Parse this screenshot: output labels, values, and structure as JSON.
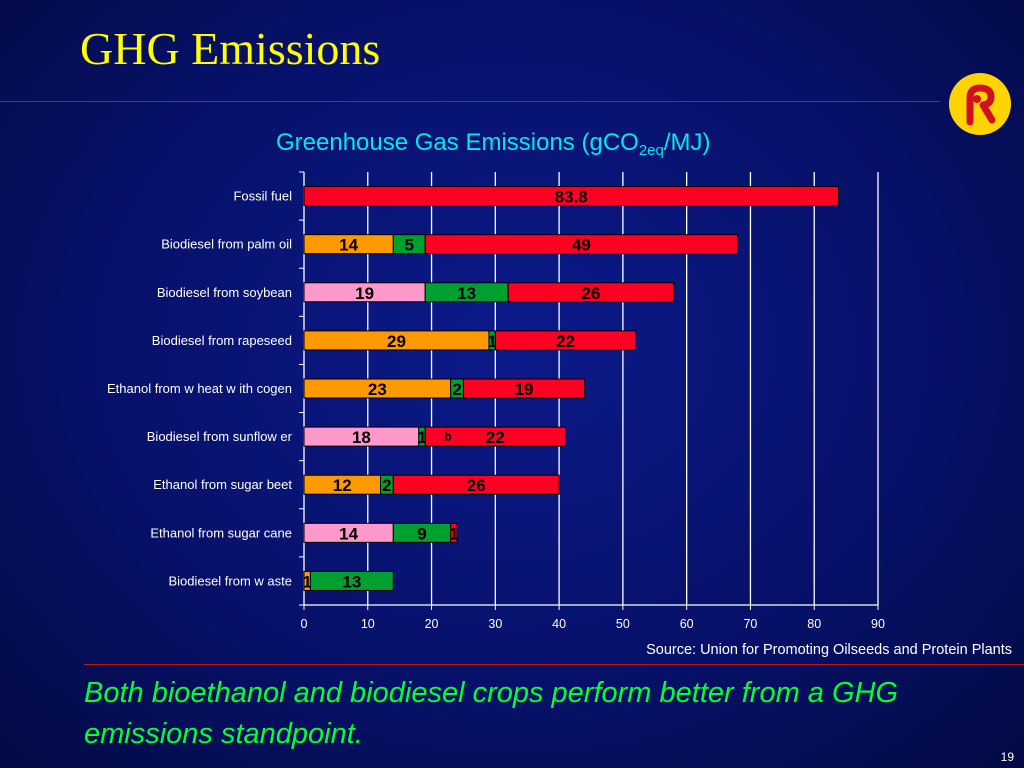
{
  "slide": {
    "title": "GHG Emissions",
    "source": "Source: Union for Promoting Oilseeds and Protein Plants",
    "conclusion": "Both bioethanol and biodiesel crops perform better from a GHG emissions standpoint.",
    "slide_number": "19"
  },
  "colors": {
    "background": "#07116a",
    "title": "#ffff00",
    "rule": "#c81010",
    "chart_title": "#00e8e8",
    "conclusion": "#00ff33",
    "seg_orange": "#ff9900",
    "seg_pink": "#ff99cc",
    "seg_green": "#00a030",
    "seg_red": "#ff0022",
    "logo_bg": "#ffd400",
    "logo_mark": "#d01020"
  },
  "chart_data": {
    "type": "bar",
    "orientation": "horizontal",
    "stacked": true,
    "title": "Greenhouse Gas Emissions (gCO",
    "title_sub": "2eq",
    "title_tail": "/MJ)",
    "xlim": [
      0,
      90
    ],
    "x_ticks": [
      0,
      10,
      20,
      30,
      40,
      50,
      60,
      70,
      80,
      90
    ],
    "grid": true,
    "annotation": "b",
    "rows": [
      {
        "label": "Fossil fuel",
        "segments": [
          {
            "value": 83.8,
            "color": "seg_red",
            "text": "83.8"
          }
        ]
      },
      {
        "label": "Biodiesel from palm oil",
        "segments": [
          {
            "value": 14,
            "color": "seg_orange",
            "text": "14"
          },
          {
            "value": 5,
            "color": "seg_green",
            "text": "5"
          },
          {
            "value": 49,
            "color": "seg_red",
            "text": "49"
          }
        ]
      },
      {
        "label": "Biodiesel from soybean",
        "segments": [
          {
            "value": 19,
            "color": "seg_pink",
            "text": "19"
          },
          {
            "value": 13,
            "color": "seg_green",
            "text": "13"
          },
          {
            "value": 26,
            "color": "seg_red",
            "text": "26"
          }
        ]
      },
      {
        "label": "Biodiesel from rapeseed",
        "segments": [
          {
            "value": 29,
            "color": "seg_orange",
            "text": "29"
          },
          {
            "value": 1,
            "color": "seg_green",
            "text": "1"
          },
          {
            "value": 22,
            "color": "seg_red",
            "text": "22"
          }
        ]
      },
      {
        "label": "Ethanol from w heat w ith cogen",
        "segments": [
          {
            "value": 23,
            "color": "seg_orange",
            "text": "23"
          },
          {
            "value": 2,
            "color": "seg_green",
            "text": "2"
          },
          {
            "value": 19,
            "color": "seg_red",
            "text": "19"
          }
        ]
      },
      {
        "label": "Biodiesel from sunflow er",
        "segments": [
          {
            "value": 18,
            "color": "seg_pink",
            "text": "18"
          },
          {
            "value": 1,
            "color": "seg_green",
            "text": "1"
          },
          {
            "value": 22,
            "color": "seg_red",
            "text": "22"
          }
        ]
      },
      {
        "label": "Ethanol from sugar beet",
        "segments": [
          {
            "value": 12,
            "color": "seg_orange",
            "text": "12"
          },
          {
            "value": 2,
            "color": "seg_green",
            "text": "2"
          },
          {
            "value": 26,
            "color": "seg_red",
            "text": "26"
          }
        ]
      },
      {
        "label": "Ethanol from sugar cane",
        "segments": [
          {
            "value": 14,
            "color": "seg_pink",
            "text": "14"
          },
          {
            "value": 9,
            "color": "seg_green",
            "text": "9"
          },
          {
            "value": 1,
            "color": "seg_red",
            "text": "1"
          }
        ]
      },
      {
        "label": "Biodiesel from w aste",
        "segments": [
          {
            "value": 1,
            "color": "seg_orange",
            "text": "1"
          },
          {
            "value": 13,
            "color": "seg_green",
            "text": "13"
          }
        ]
      }
    ]
  }
}
